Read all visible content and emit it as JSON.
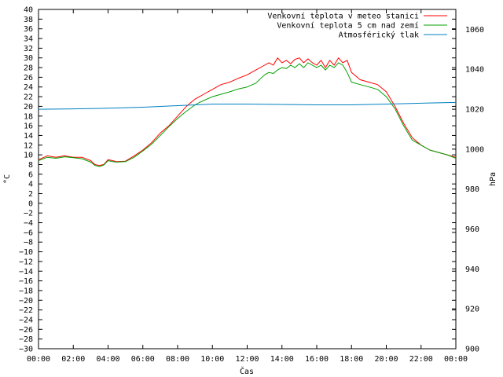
{
  "chart_data": {
    "type": "line",
    "xlabel": "Čas",
    "ylabel": "°C",
    "y2label": "hPa",
    "x_ticks": [
      "00:00",
      "02:00",
      "04:00",
      "06:00",
      "08:00",
      "10:00",
      "12:00",
      "14:00",
      "16:00",
      "18:00",
      "20:00",
      "22:00",
      "00:00"
    ],
    "x_range_hours": [
      0,
      24
    ],
    "ylim": [
      -30,
      40
    ],
    "y_ticks": [
      -30,
      -28,
      -26,
      -24,
      -22,
      -20,
      -18,
      -16,
      -14,
      -12,
      -10,
      -8,
      -6,
      -4,
      -2,
      0,
      2,
      4,
      6,
      8,
      10,
      12,
      14,
      16,
      18,
      20,
      22,
      24,
      26,
      28,
      30,
      32,
      34,
      36,
      38,
      40
    ],
    "y2lim": [
      900,
      1070
    ],
    "y2_ticks": [
      900,
      920,
      940,
      960,
      980,
      1000,
      1020,
      1040,
      1060
    ],
    "grid": false,
    "legend_position": "top-right",
    "series": [
      {
        "name": "Venkovní teplota v meteo stanici",
        "color": "#ff0000",
        "axis": "left",
        "x": [
          0,
          0.5,
          1,
          1.5,
          2,
          2.5,
          3,
          3.25,
          3.5,
          3.75,
          4,
          4.25,
          4.5,
          5,
          5.5,
          6,
          6.5,
          7,
          7.5,
          8,
          8.5,
          9,
          9.25,
          9.5,
          10,
          10.5,
          11,
          11.5,
          12,
          12.5,
          13,
          13.25,
          13.5,
          13.75,
          14,
          14.25,
          14.5,
          14.75,
          15,
          15.25,
          15.5,
          15.75,
          16,
          16.25,
          16.5,
          16.75,
          17,
          17.25,
          17.5,
          17.75,
          18,
          18.5,
          19,
          19.5,
          20,
          20.5,
          21,
          21.5,
          22,
          22.5,
          23,
          23.5,
          24
        ],
        "y": [
          9,
          9.8,
          9.5,
          9.8,
          9.5,
          9.5,
          8.8,
          8,
          7.8,
          8,
          9,
          8.8,
          8.6,
          8.7,
          9.8,
          11,
          12.5,
          14.5,
          16,
          18,
          20,
          21.5,
          22,
          22.5,
          23.5,
          24.5,
          25,
          25.8,
          26.5,
          27.5,
          28.5,
          29,
          28.5,
          30,
          29,
          29.5,
          28.8,
          29.7,
          30,
          29,
          29.8,
          29,
          28.5,
          29.5,
          28,
          29.5,
          28.5,
          30,
          29,
          29.5,
          27,
          25.5,
          25,
          24.5,
          23,
          20,
          16.5,
          13.5,
          12,
          11,
          10.5,
          10,
          9.5
        ]
      },
      {
        "name": "Venkovní teplota 5 cm nad zemí",
        "color": "#00a000",
        "axis": "left",
        "x": [
          0,
          0.5,
          1,
          1.5,
          2,
          2.5,
          3,
          3.25,
          3.5,
          3.75,
          4,
          4.25,
          4.5,
          5,
          5.5,
          6,
          6.5,
          7,
          7.5,
          8,
          8.5,
          9,
          9.25,
          9.5,
          10,
          10.5,
          11,
          11.5,
          12,
          12.5,
          13,
          13.25,
          13.5,
          13.75,
          14,
          14.25,
          14.5,
          14.75,
          15,
          15.25,
          15.5,
          15.75,
          16,
          16.25,
          16.5,
          16.75,
          17,
          17.25,
          17.5,
          17.75,
          18,
          18.5,
          19,
          19.5,
          20,
          20.5,
          21,
          21.5,
          22,
          22.5,
          23,
          23.5,
          24
        ],
        "y": [
          8.8,
          9.5,
          9.3,
          9.6,
          9.4,
          9.2,
          8.5,
          7.8,
          7.6,
          7.9,
          8.8,
          8.6,
          8.5,
          8.6,
          9.5,
          10.8,
          12.2,
          14,
          15.8,
          17.5,
          19,
          20.3,
          20.8,
          21.2,
          22,
          22.5,
          23,
          23.6,
          24,
          24.8,
          26.5,
          27,
          26.8,
          27.5,
          28,
          27.8,
          28.5,
          28,
          28.8,
          28,
          29,
          28.5,
          28,
          28.5,
          27.5,
          28.5,
          28,
          29,
          28.5,
          27,
          25,
          24.5,
          24,
          23.5,
          22,
          19.5,
          16,
          13,
          12,
          11,
          10.5,
          10,
          9.3
        ]
      },
      {
        "name": "Atmosférický tlak",
        "color": "#0080c0",
        "axis": "right",
        "x": [
          0,
          2,
          4,
          6,
          8,
          10,
          12,
          14,
          16,
          18,
          20,
          22,
          24
        ],
        "y": [
          1020,
          1020.2,
          1020.5,
          1021,
          1021.8,
          1022.6,
          1022.6,
          1022.4,
          1022.2,
          1022.2,
          1022.6,
          1023,
          1023.4
        ]
      }
    ]
  }
}
